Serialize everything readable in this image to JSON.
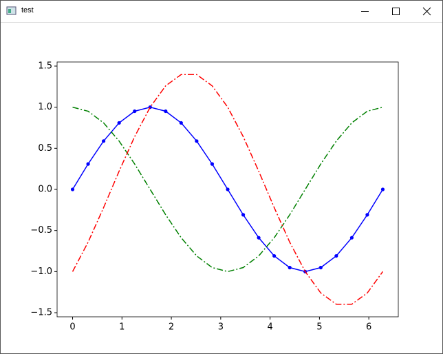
{
  "window": {
    "title": "test"
  },
  "chart_data": {
    "type": "line",
    "x": [
      0,
      0.314,
      0.628,
      0.942,
      1.257,
      1.571,
      1.885,
      2.199,
      2.513,
      2.827,
      3.142,
      3.456,
      3.77,
      4.084,
      4.398,
      4.712,
      5.027,
      5.341,
      5.655,
      5.969,
      6.283
    ],
    "series": [
      {
        "color": "#0000ff",
        "dash": "solid",
        "marker": "o",
        "values": [
          0,
          0.309,
          0.588,
          0.809,
          0.951,
          1,
          0.951,
          0.809,
          0.588,
          0.309,
          0,
          -0.309,
          -0.588,
          -0.809,
          -0.951,
          -1,
          -0.951,
          -0.809,
          -0.588,
          -0.309,
          0
        ]
      },
      {
        "color": "#008000",
        "dash": "dashdot",
        "values": [
          1,
          0.951,
          0.809,
          0.588,
          0.309,
          0,
          -0.309,
          -0.588,
          -0.809,
          -0.951,
          -1,
          -0.951,
          -0.809,
          -0.588,
          -0.309,
          0,
          0.309,
          0.588,
          0.809,
          0.951,
          1
        ]
      },
      {
        "color": "#ff0000",
        "dash": "dashdot",
        "values": [
          -1,
          -0.642,
          -0.221,
          0.221,
          0.642,
          1,
          1.26,
          1.397,
          1.397,
          1.26,
          1,
          0.642,
          0.221,
          -0.221,
          -0.642,
          -1,
          -1.26,
          -1.397,
          -1.397,
          -1.26,
          -1
        ]
      }
    ],
    "xlim": [
      -0.314,
      6.597
    ],
    "xticks": [
      0,
      1,
      2,
      3,
      4,
      5,
      6
    ],
    "ylim": [
      -1.55,
      1.55
    ],
    "yticks": [
      {
        "value": -1.5,
        "label": "−1.5"
      },
      {
        "value": -1,
        "label": "−1.0"
      },
      {
        "value": -0.5,
        "label": "−0.5"
      },
      {
        "value": 0,
        "label": "0.0"
      },
      {
        "value": 0.5,
        "label": "0.5"
      },
      {
        "value": 1,
        "label": "1.0"
      },
      {
        "value": 1.5,
        "label": "1.5"
      }
    ]
  }
}
